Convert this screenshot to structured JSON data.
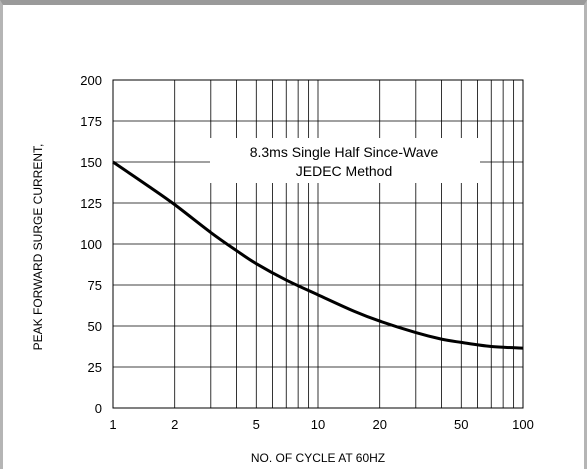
{
  "chart_data": {
    "type": "line",
    "xlabel": "NO. OF CYCLE AT 60HZ",
    "ylabel": "PEAK FORWARD SURGE CURRENT,",
    "xscale": "log",
    "xlim": [
      1,
      100
    ],
    "ylim": [
      0,
      200
    ],
    "x_ticks": [
      1,
      2,
      5,
      10,
      20,
      50,
      100
    ],
    "y_ticks": [
      0,
      25,
      50,
      75,
      100,
      125,
      150,
      175,
      200
    ],
    "x_tick_labels": [
      "1",
      "2",
      "5",
      "10",
      "20",
      "50",
      "100"
    ],
    "y_tick_labels": [
      "0",
      "25",
      "50",
      "75",
      "100",
      "125",
      "150",
      "175",
      "200"
    ],
    "grid": true,
    "annotation": [
      "8.3ms Single Half Since-Wave",
      "JEDEC Method"
    ],
    "line_color": "#000000",
    "series": [
      {
        "x": [
          1,
          1.5,
          2,
          3,
          4,
          5,
          7,
          10,
          15,
          20,
          30,
          40,
          50,
          70,
          100
        ],
        "y": [
          150,
          135,
          124,
          107,
          96,
          88,
          78,
          69,
          59,
          53,
          46,
          42,
          40,
          37.5,
          36.5
        ]
      }
    ]
  }
}
